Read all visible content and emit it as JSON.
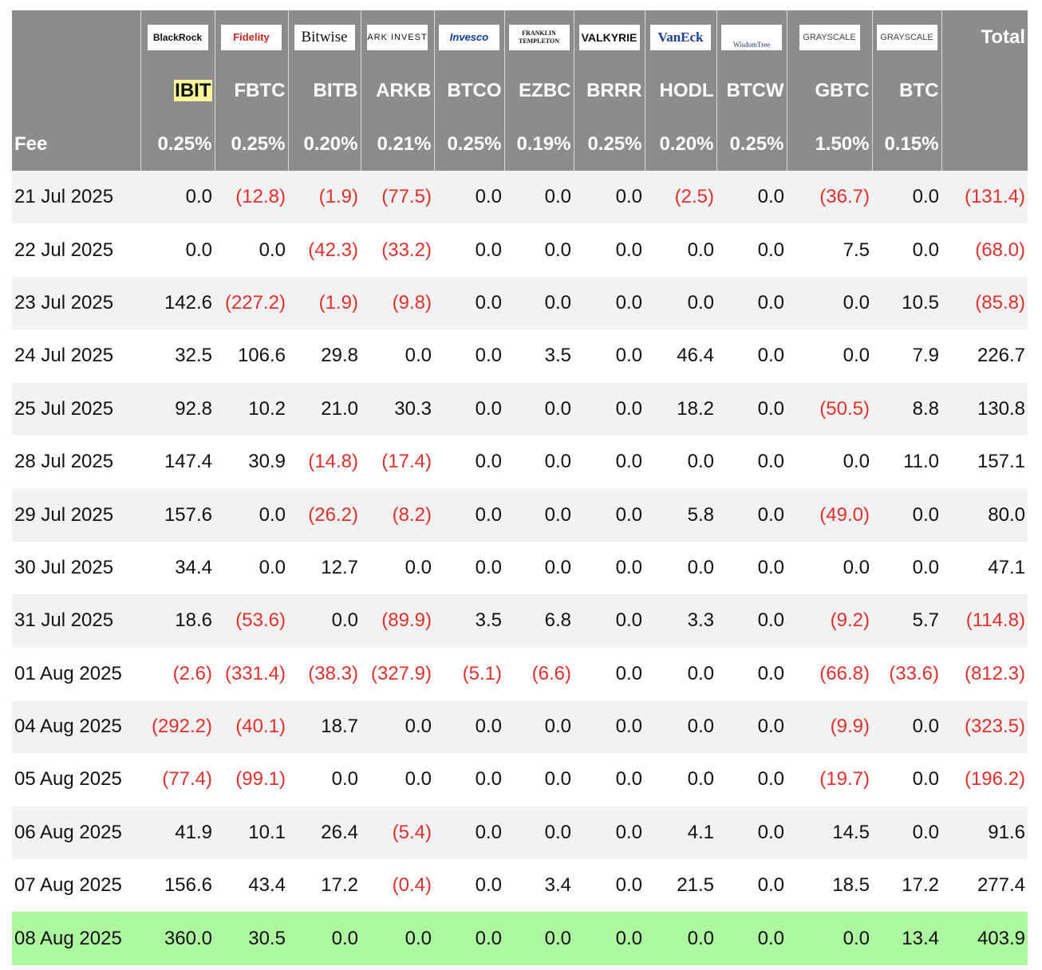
{
  "header": {
    "logos": [
      "BlackRock",
      "Fidelity",
      "Bitwise",
      "ARK INVEST",
      "Invesco",
      "FRANKLIN TEMPLETON",
      "VALKYRIE",
      "VanEck",
      "WisdomTree",
      "GRAYSCALE",
      "GRAYSCALE"
    ],
    "total_label": "Total",
    "tickers": [
      "IBIT",
      "FBTC",
      "BITB",
      "ARKB",
      "BTCO",
      "EZBC",
      "BRRR",
      "HODL",
      "BTCW",
      "GBTC",
      "BTC"
    ],
    "fee_label": "Fee",
    "fees": [
      "0.25%",
      "0.25%",
      "0.20%",
      "0.21%",
      "0.25%",
      "0.19%",
      "0.25%",
      "0.20%",
      "0.25%",
      "1.50%",
      "0.15%"
    ]
  },
  "table": {
    "rows": [
      {
        "date": "21 Jul 2025",
        "values": [
          "0.0",
          "(12.8)",
          "(1.9)",
          "(77.5)",
          "0.0",
          "0.0",
          "0.0",
          "(2.5)",
          "0.0",
          "(36.7)",
          "0.0",
          "(131.4)"
        ]
      },
      {
        "date": "22 Jul 2025",
        "values": [
          "0.0",
          "0.0",
          "(42.3)",
          "(33.2)",
          "0.0",
          "0.0",
          "0.0",
          "0.0",
          "0.0",
          "7.5",
          "0.0",
          "(68.0)"
        ]
      },
      {
        "date": "23 Jul 2025",
        "values": [
          "142.6",
          "(227.2)",
          "(1.9)",
          "(9.8)",
          "0.0",
          "0.0",
          "0.0",
          "0.0",
          "0.0",
          "0.0",
          "10.5",
          "(85.8)"
        ]
      },
      {
        "date": "24 Jul 2025",
        "values": [
          "32.5",
          "106.6",
          "29.8",
          "0.0",
          "0.0",
          "3.5",
          "0.0",
          "46.4",
          "0.0",
          "0.0",
          "7.9",
          "226.7"
        ]
      },
      {
        "date": "25 Jul 2025",
        "values": [
          "92.8",
          "10.2",
          "21.0",
          "30.3",
          "0.0",
          "0.0",
          "0.0",
          "18.2",
          "0.0",
          "(50.5)",
          "8.8",
          "130.8"
        ]
      },
      {
        "date": "28 Jul 2025",
        "values": [
          "147.4",
          "30.9",
          "(14.8)",
          "(17.4)",
          "0.0",
          "0.0",
          "0.0",
          "0.0",
          "0.0",
          "0.0",
          "11.0",
          "157.1"
        ]
      },
      {
        "date": "29 Jul 2025",
        "values": [
          "157.6",
          "0.0",
          "(26.2)",
          "(8.2)",
          "0.0",
          "0.0",
          "0.0",
          "5.8",
          "0.0",
          "(49.0)",
          "0.0",
          "80.0"
        ]
      },
      {
        "date": "30 Jul 2025",
        "values": [
          "34.4",
          "0.0",
          "12.7",
          "0.0",
          "0.0",
          "0.0",
          "0.0",
          "0.0",
          "0.0",
          "0.0",
          "0.0",
          "47.1"
        ]
      },
      {
        "date": "31 Jul 2025",
        "values": [
          "18.6",
          "(53.6)",
          "0.0",
          "(89.9)",
          "3.5",
          "6.8",
          "0.0",
          "3.3",
          "0.0",
          "(9.2)",
          "5.7",
          "(114.8)"
        ]
      },
      {
        "date": "01 Aug 2025",
        "values": [
          "(2.6)",
          "(331.4)",
          "(38.3)",
          "(327.9)",
          "(5.1)",
          "(6.6)",
          "0.0",
          "0.0",
          "0.0",
          "(66.8)",
          "(33.6)",
          "(812.3)"
        ]
      },
      {
        "date": "04 Aug 2025",
        "values": [
          "(292.2)",
          "(40.1)",
          "18.7",
          "0.0",
          "0.0",
          "0.0",
          "0.0",
          "0.0",
          "0.0",
          "(9.9)",
          "0.0",
          "(323.5)"
        ]
      },
      {
        "date": "05 Aug 2025",
        "values": [
          "(77.4)",
          "(99.1)",
          "0.0",
          "0.0",
          "0.0",
          "0.0",
          "0.0",
          "0.0",
          "0.0",
          "(19.7)",
          "0.0",
          "(196.2)"
        ]
      },
      {
        "date": "06 Aug 2025",
        "values": [
          "41.9",
          "10.1",
          "26.4",
          "(5.4)",
          "0.0",
          "0.0",
          "0.0",
          "4.1",
          "0.0",
          "14.5",
          "0.0",
          "91.6"
        ]
      },
      {
        "date": "07 Aug 2025",
        "values": [
          "156.6",
          "43.4",
          "17.2",
          "(0.4)",
          "0.0",
          "3.4",
          "0.0",
          "21.5",
          "0.0",
          "18.5",
          "17.2",
          "277.4"
        ]
      },
      {
        "date": "08 Aug 2025",
        "values": [
          "360.0",
          "30.5",
          "0.0",
          "0.0",
          "0.0",
          "0.0",
          "0.0",
          "0.0",
          "0.0",
          "0.0",
          "13.4",
          "403.9"
        ]
      }
    ]
  }
}
